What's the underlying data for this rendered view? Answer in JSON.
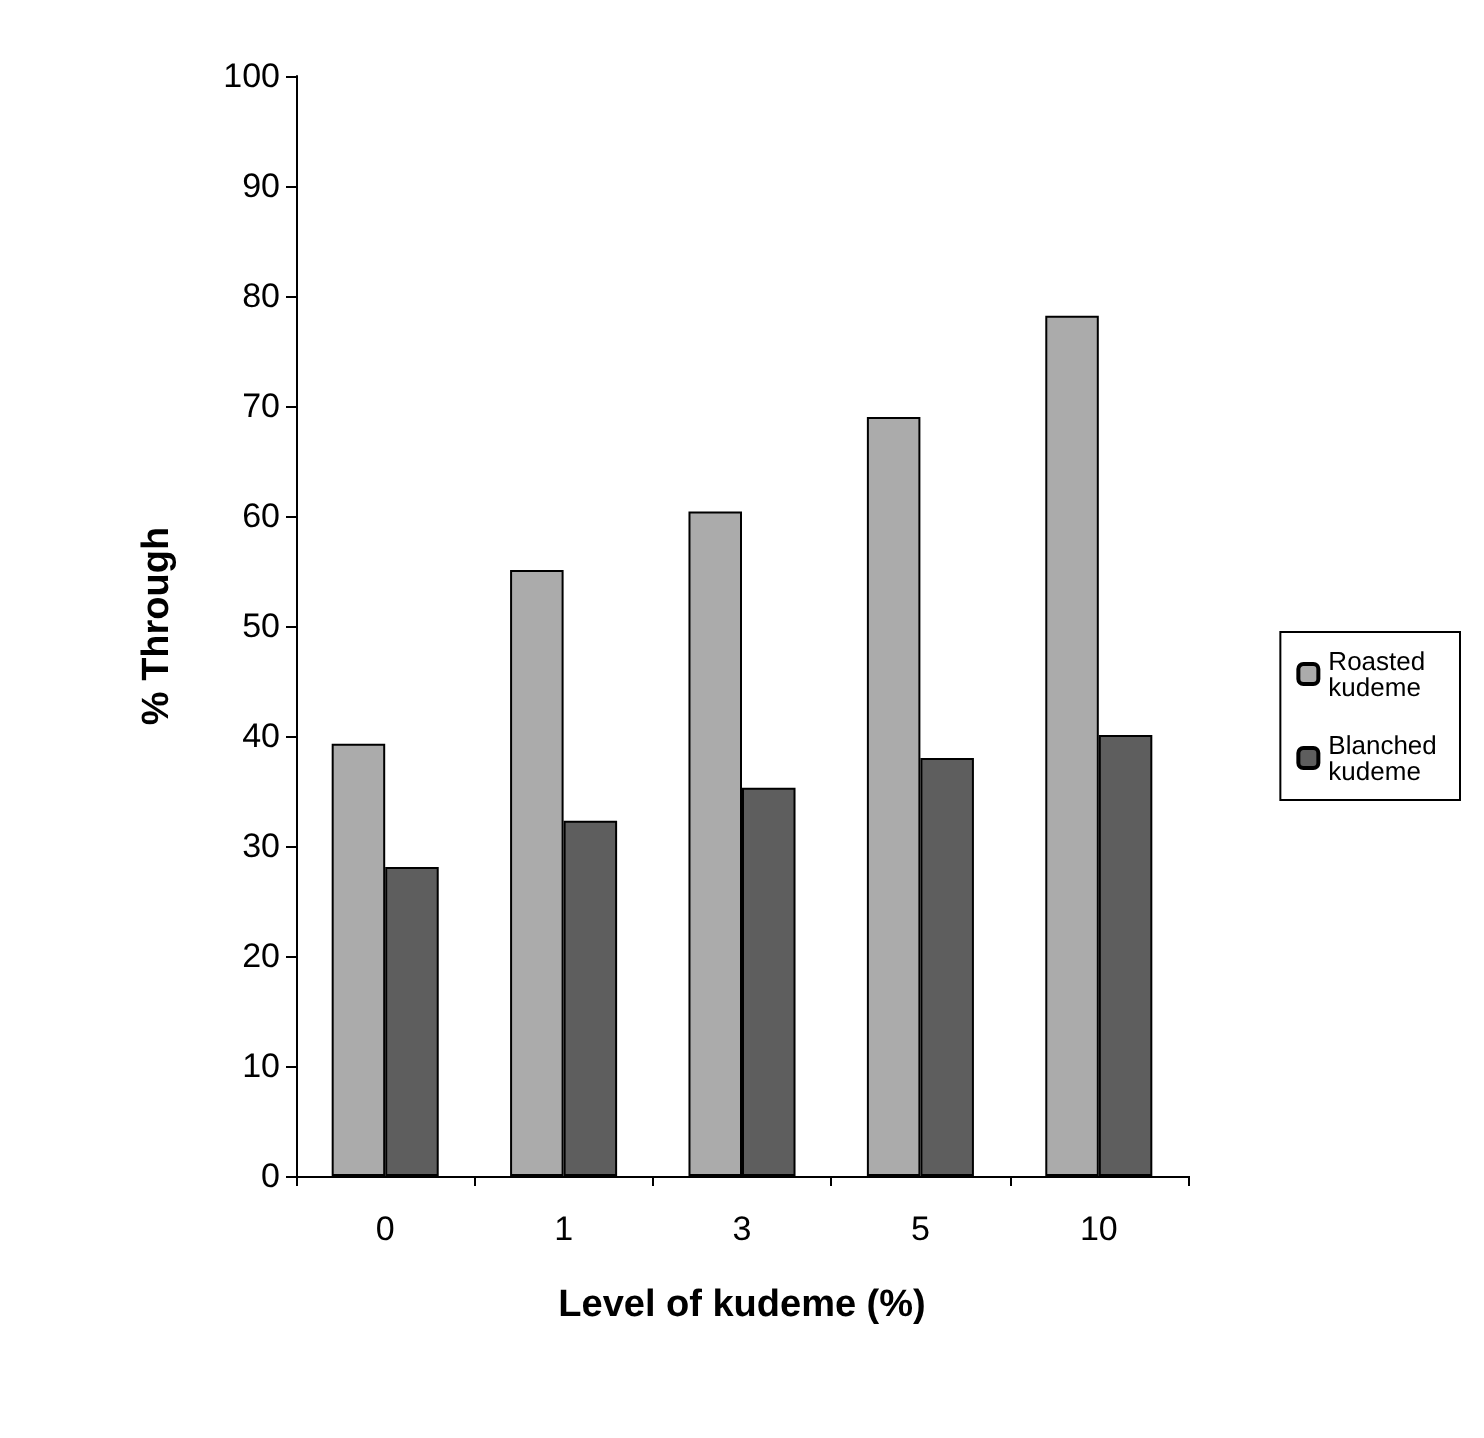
{
  "chart_data": {
    "type": "bar",
    "xlabel": "Level of kudeme (%)",
    "ylabel": "% Through",
    "categories": [
      "0",
      "1",
      "3",
      "5",
      "10"
    ],
    "series": [
      {
        "name": "Roasted kudeme",
        "color": "#ababab",
        "values": [
          39.3,
          55.1,
          60.4,
          69.0,
          78.2
        ]
      },
      {
        "name": "Blanched kudeme",
        "color": "#5e5e5e",
        "values": [
          28.1,
          32.3,
          35.3,
          38.0,
          40.1
        ]
      }
    ],
    "ylim": [
      0,
      100
    ],
    "yticks": [
      0,
      10,
      20,
      30,
      40,
      50,
      60,
      70,
      80,
      90,
      100
    ],
    "grid": false,
    "legend": "right"
  }
}
